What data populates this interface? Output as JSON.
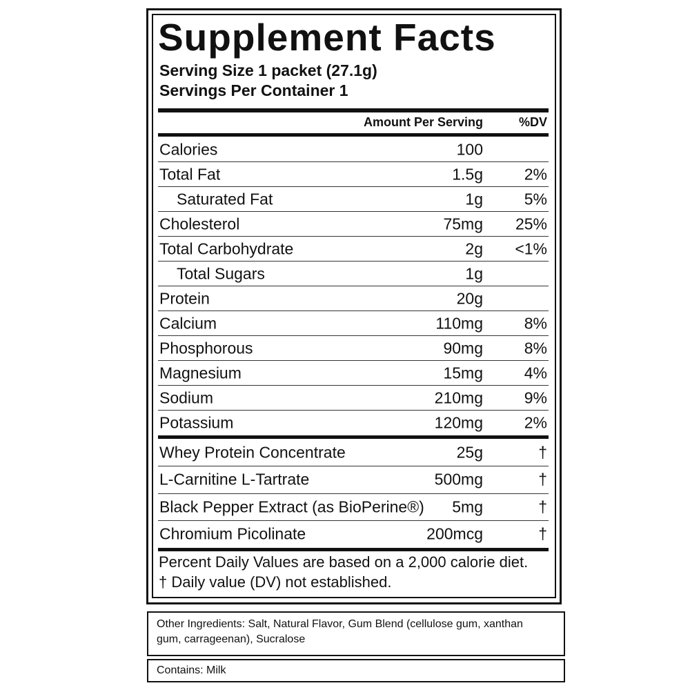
{
  "title": "Supplement Facts",
  "serving_size": "Serving Size 1 packet (27.1g)",
  "servings_per_container": "Servings Per Container 1",
  "header": {
    "amount": "Amount Per Serving",
    "dv": "%DV"
  },
  "nutrients": [
    {
      "name": "Calories",
      "amount": "100"
    },
    {
      "name": "Total Fat",
      "amount": "1.5g",
      "dv": "2%",
      "sub": [
        {
          "name": "Saturated Fat",
          "amount": "1g",
          "dv": "5%"
        }
      ]
    },
    {
      "name": "Cholesterol",
      "amount": "75mg",
      "dv": "25%"
    },
    {
      "name": "Total Carbohydrate",
      "amount": "2g",
      "dv": "<1%",
      "sub": [
        {
          "name": "Total Sugars",
          "amount": "1g"
        }
      ]
    },
    {
      "name": "Protein",
      "amount": "20g"
    },
    {
      "name": "Calcium",
      "amount": "110mg",
      "dv": "8%"
    },
    {
      "name": "Phosphorous",
      "amount": "90mg",
      "dv": "8%"
    },
    {
      "name": "Magnesium",
      "amount": "15mg",
      "dv": "4%"
    },
    {
      "name": "Sodium",
      "amount": "210mg",
      "dv": "9%"
    },
    {
      "name": "Potassium",
      "amount": "120mg",
      "dv": "2%"
    }
  ],
  "ingredients": [
    {
      "name": "Whey Protein Concentrate",
      "amount": "25g",
      "dv": "†"
    },
    {
      "name": "L-Carnitine L-Tartrate",
      "amount": "500mg",
      "dv": "†"
    },
    {
      "name": "Black Pepper Extract (as BioPerine®)",
      "amount": "5mg",
      "dv": "†"
    },
    {
      "name": "Chromium Picolinate",
      "amount": "200mcg",
      "dv": "†"
    }
  ],
  "footnotes": [
    "Percent Daily Values are based on a 2,000 calorie diet.",
    "† Daily value (DV) not established."
  ],
  "other_ingredients": "Other Ingredients: Salt, Natural Flavor, Gum Blend (cellulose gum, xanthan gum, carrageenan), Sucralose",
  "contains": "Contains: Milk"
}
